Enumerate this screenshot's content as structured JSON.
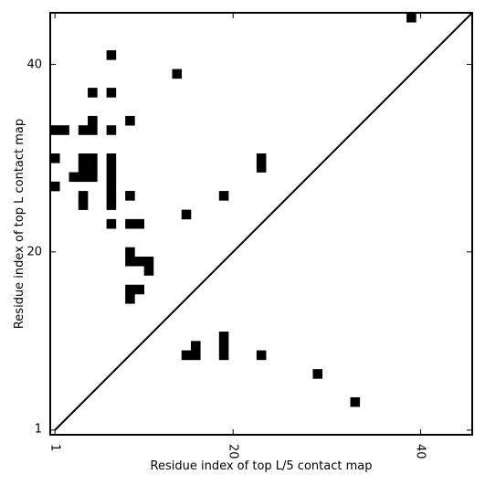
{
  "chart_data": {
    "type": "heatmap",
    "title": "",
    "xlabel": "Residue index of top L/5 contact map",
    "ylabel": "Residue index of top L contact map",
    "xlim": [
      0.5,
      45.5
    ],
    "ylim": [
      0.5,
      45.5
    ],
    "xticks": [
      1,
      20,
      40
    ],
    "yticks": [
      1,
      20,
      40
    ],
    "tick_labels": [
      "1",
      "20",
      "40"
    ],
    "diagonal": {
      "from": [
        1,
        1
      ],
      "to": [
        45.5,
        45.5
      ]
    },
    "color": "#000000",
    "upper_triangle_cells": [
      [
        39,
        45
      ],
      [
        7,
        41
      ],
      [
        14,
        39
      ],
      [
        5,
        37
      ],
      [
        7,
        37
      ],
      [
        9,
        34
      ],
      [
        5,
        34
      ],
      [
        1,
        33
      ],
      [
        2,
        33
      ],
      [
        4,
        33
      ],
      [
        5,
        33
      ],
      [
        7,
        33
      ],
      [
        1,
        30
      ],
      [
        4,
        30
      ],
      [
        5,
        30
      ],
      [
        7,
        30
      ],
      [
        23,
        30
      ],
      [
        4,
        29
      ],
      [
        5,
        29
      ],
      [
        7,
        29
      ],
      [
        23,
        29
      ],
      [
        3,
        28
      ],
      [
        4,
        28
      ],
      [
        5,
        28
      ],
      [
        7,
        28
      ],
      [
        1,
        27
      ],
      [
        7,
        27
      ],
      [
        4,
        26
      ],
      [
        7,
        26
      ],
      [
        9,
        26
      ],
      [
        19,
        26
      ],
      [
        4,
        25
      ],
      [
        7,
        25
      ],
      [
        15,
        24
      ],
      [
        7,
        23
      ],
      [
        9,
        23
      ],
      [
        10,
        23
      ],
      [
        9,
        20
      ],
      [
        9,
        19
      ],
      [
        10,
        19
      ],
      [
        11,
        19
      ],
      [
        11,
        18
      ],
      [
        9,
        16
      ],
      [
        10,
        16
      ],
      [
        9,
        15
      ]
    ],
    "lower_triangle_cells": [
      [
        19,
        11
      ],
      [
        16,
        10
      ],
      [
        19,
        10
      ],
      [
        15,
        9
      ],
      [
        16,
        9
      ],
      [
        19,
        9
      ],
      [
        23,
        9
      ],
      [
        29,
        7
      ],
      [
        33,
        4
      ]
    ]
  }
}
